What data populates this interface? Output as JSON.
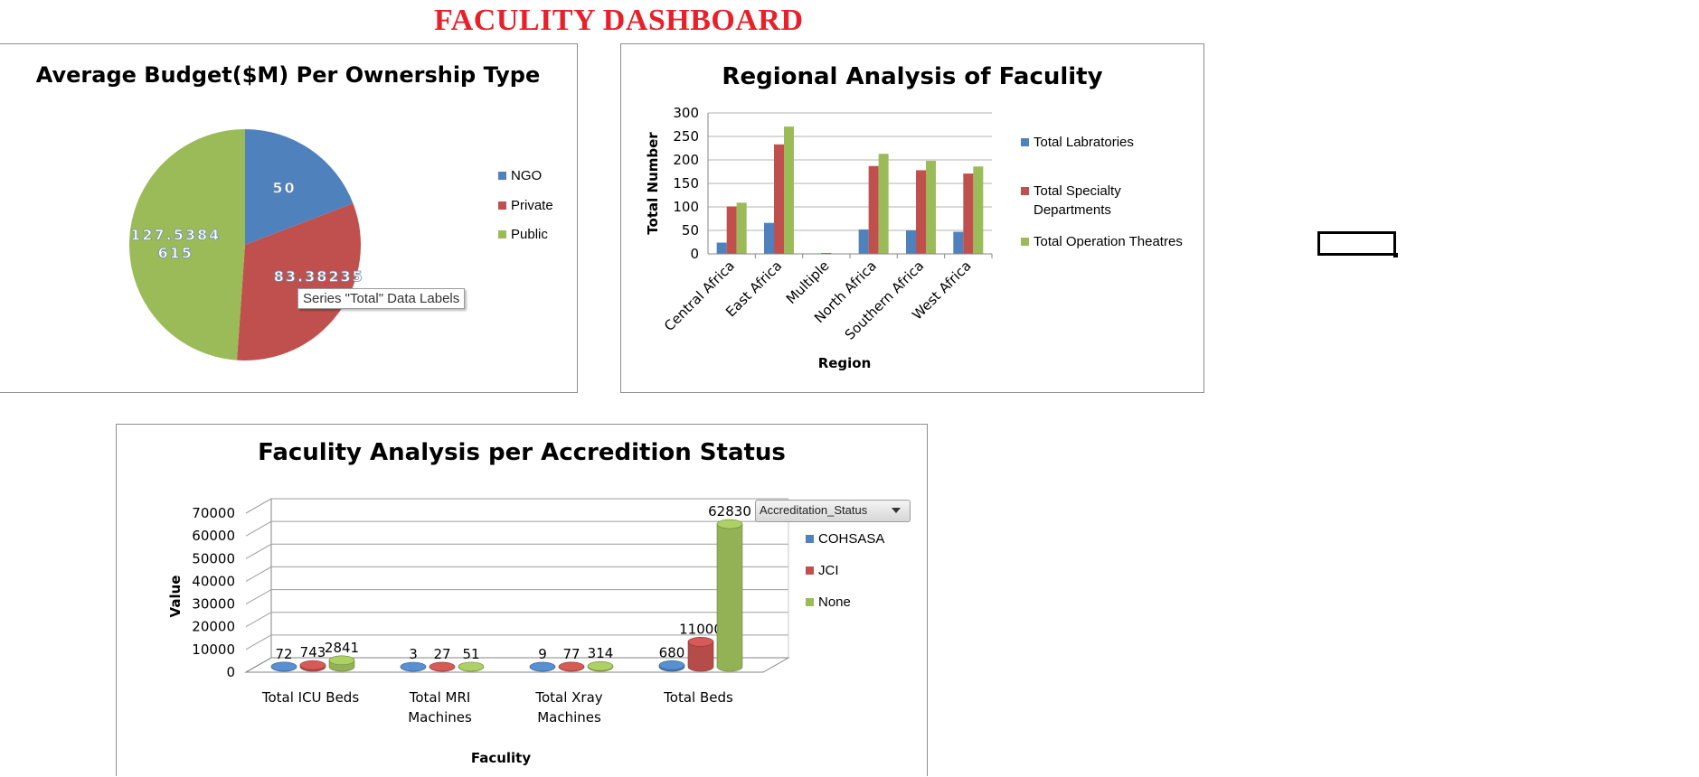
{
  "dashboard_title": "FACULITY DASHBOARD",
  "colors": {
    "blue": "#4f81bd",
    "red": "#c0504d",
    "green": "#9bbb59",
    "title_red": "#e8202a"
  },
  "tooltip": "Series \"Total\" Data Labels",
  "pivot_filter": {
    "label": "Accreditation_Status",
    "icon": "chevron-down-icon"
  },
  "chart_data": [
    {
      "type": "pie",
      "title": "Average Budget($M) Per Ownership Type",
      "categories": [
        "NGO",
        "Private",
        "Public"
      ],
      "values": [
        50,
        83.38235294,
        127.5384615
      ],
      "data_labels": [
        "50",
        "83.38235\n294",
        "127.5384\n615"
      ],
      "legend": "right",
      "colors": [
        "#4f81bd",
        "#c0504d",
        "#9bbb59"
      ]
    },
    {
      "type": "bar",
      "title": "Regional Analysis of Faculity",
      "xlabel": "Region",
      "ylabel": "Total Number",
      "categories": [
        "Central Africa",
        "East Africa",
        "Multiple",
        "North Africa",
        "Southern Africa",
        "West Africa"
      ],
      "ylim": [
        0,
        300
      ],
      "yticks": [
        "0",
        "50",
        "100",
        "150",
        "200",
        "250",
        "300"
      ],
      "legend": "right",
      "series": [
        {
          "name": "Total Labratories",
          "color": "#4f81bd",
          "values": [
            24,
            66,
            1,
            52,
            50,
            47
          ]
        },
        {
          "name": "Total Specialty Departments",
          "color": "#c0504d",
          "values": [
            101,
            233,
            2,
            187,
            178,
            171
          ]
        },
        {
          "name": "Total Operation Theatres",
          "color": "#9bbb59",
          "values": [
            109,
            271,
            0,
            213,
            198,
            186
          ]
        }
      ]
    },
    {
      "type": "bar",
      "subtype": "3d-cylinder",
      "title": "Faculity Analysis per Accredition  Status",
      "xlabel": "Faculity",
      "ylabel": "Value",
      "categories": [
        "Total ICU Beds",
        "Total MRI Machines",
        "Total Xray Machines",
        "Total Beds"
      ],
      "category_lines": [
        [
          "Total ICU Beds"
        ],
        [
          "Total MRI",
          "Machines"
        ],
        [
          "Total Xray",
          "Machines"
        ],
        [
          "Total Beds"
        ]
      ],
      "ylim": [
        0,
        70000
      ],
      "yticks": [
        "0",
        "10000",
        "20000",
        "30000",
        "40000",
        "50000",
        "60000",
        "70000"
      ],
      "legend": "right",
      "series": [
        {
          "name": "COHSASA",
          "color": "#4f81bd",
          "values": [
            72,
            3,
            9,
            680
          ],
          "labels": [
            "72",
            "3",
            "9",
            "680"
          ]
        },
        {
          "name": "JCI",
          "color": "#c0504d",
          "values": [
            743,
            27,
            77,
            11000
          ],
          "labels": [
            "743",
            "27",
            "77",
            "11000"
          ]
        },
        {
          "name": "None",
          "color": "#9bbb59",
          "values": [
            2841,
            51,
            314,
            62830
          ],
          "labels": [
            "2841",
            "51",
            "314",
            "62830"
          ]
        }
      ]
    }
  ]
}
